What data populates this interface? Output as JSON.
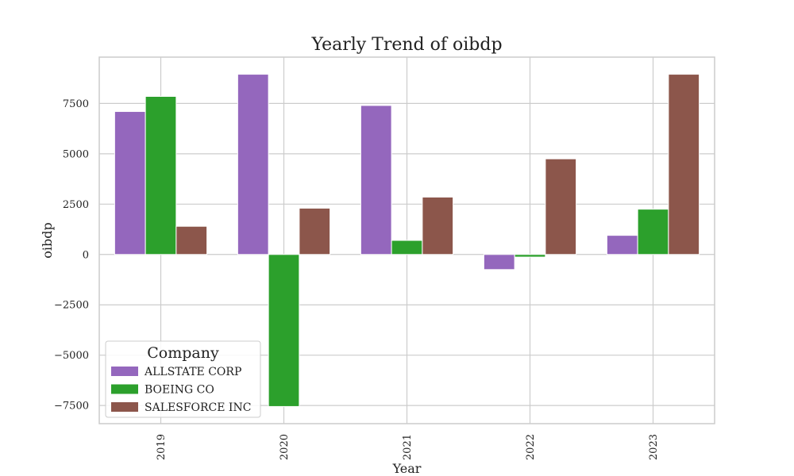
{
  "chart_data": {
    "type": "bar",
    "title": "Yearly Trend of oibdp",
    "xlabel": "Year",
    "ylabel": "oibdp",
    "categories": [
      "2019",
      "2020",
      "2021",
      "2022",
      "2023"
    ],
    "series": [
      {
        "name": "ALLSTATE CORP",
        "color": "#9467bd",
        "values": [
          7100,
          8950,
          7400,
          -750,
          950
        ]
      },
      {
        "name": "BOEING CO",
        "color": "#2ca02c",
        "values": [
          7850,
          -7550,
          700,
          -130,
          2250
        ]
      },
      {
        "name": "SALESFORCE INC",
        "color": "#8c564b",
        "values": [
          1400,
          2300,
          2850,
          4750,
          8950
        ]
      }
    ],
    "ylim": [
      -8400,
      9800
    ],
    "yticks": [
      -7500,
      -5000,
      -2500,
      0,
      2500,
      5000,
      7500
    ],
    "ytick_labels": [
      "−7500",
      "−5000",
      "−2500",
      "0",
      "2500",
      "5000",
      "7500"
    ],
    "grid": true,
    "legend": {
      "title": "Company",
      "placement": "lower-left"
    }
  }
}
